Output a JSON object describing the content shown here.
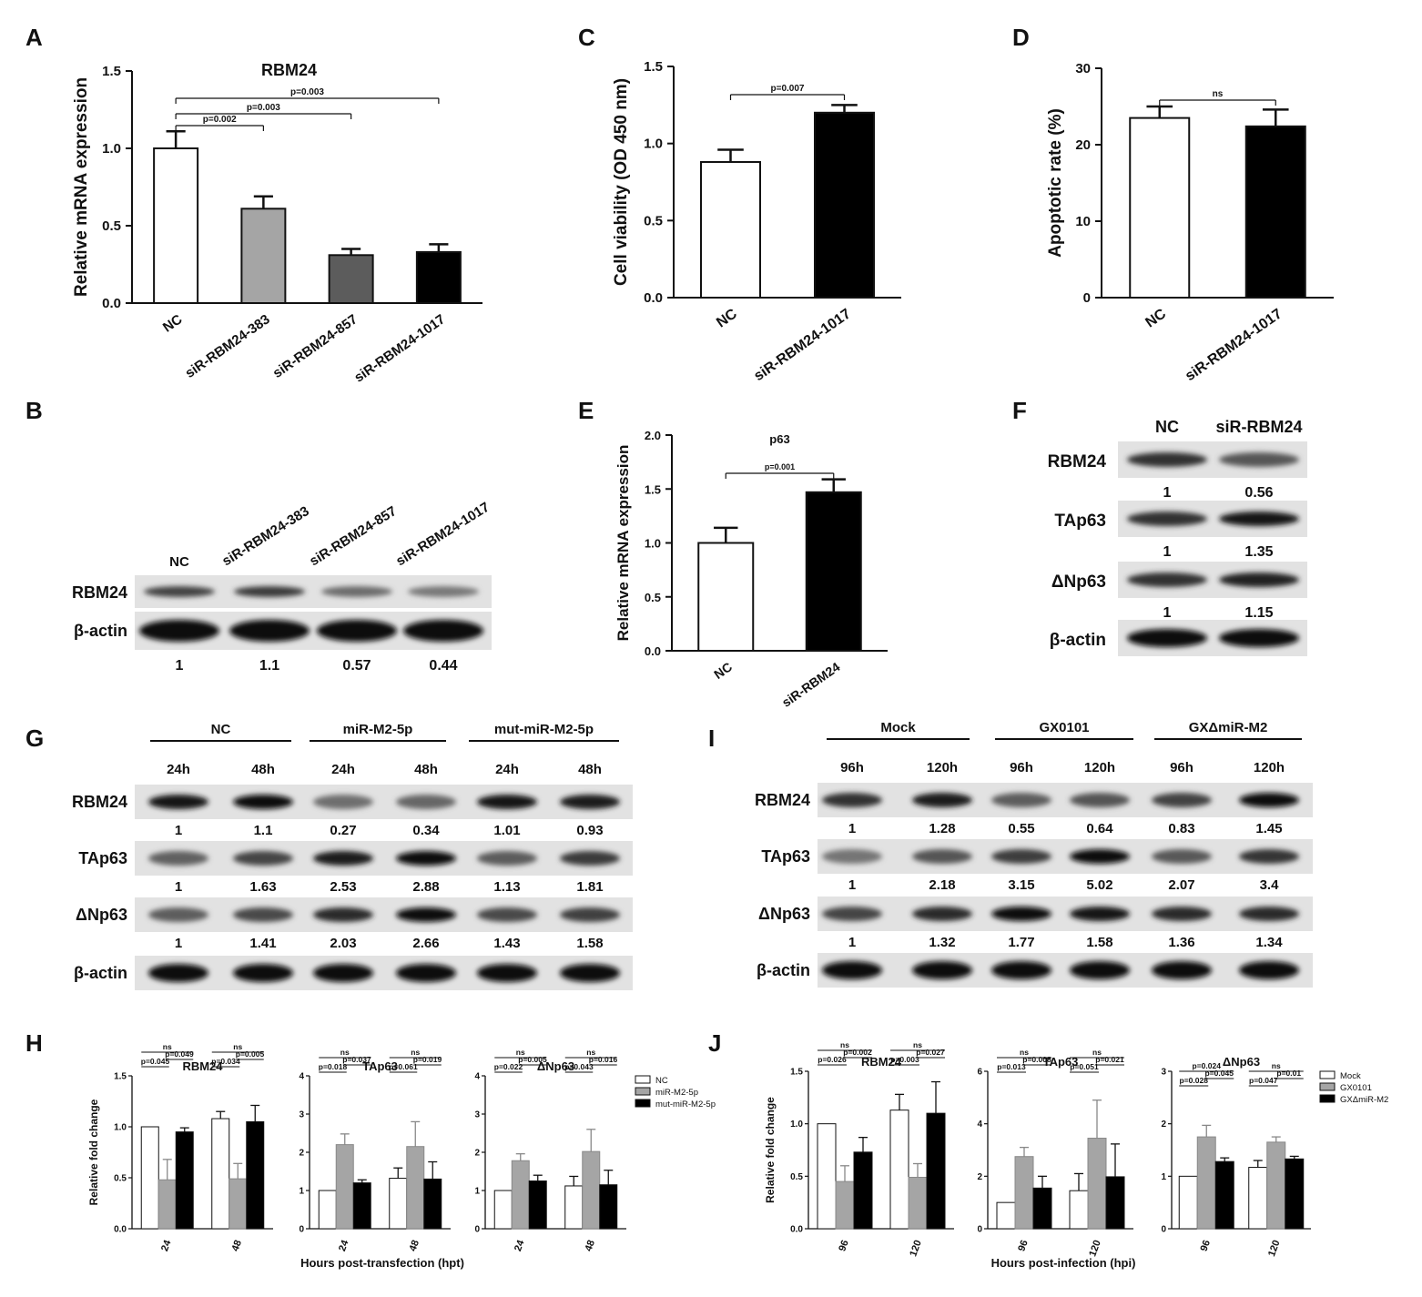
{
  "panel_labels": [
    "A",
    "B",
    "C",
    "D",
    "E",
    "F",
    "G",
    "H",
    "I",
    "J"
  ],
  "chart_data": [
    {
      "id": "A",
      "type": "bar",
      "title": "RBM24",
      "ylabel": "Relative mRNA expression",
      "ylim": [
        0,
        1.5
      ],
      "yticks": [
        "0.0",
        "0.5",
        "1.0",
        "1.5"
      ],
      "categories": [
        "NC",
        "siR-RBM24-383",
        "siR-RBM24-857",
        "siR-RBM24-1017"
      ],
      "values": [
        1.0,
        0.61,
        0.31,
        0.33
      ],
      "errors": [
        0.11,
        0.08,
        0.04,
        0.05
      ],
      "colors": [
        "#ffffff",
        "#a5a5a5",
        "#5c5c5c",
        "#000000"
      ],
      "annotations": [
        {
          "text": "p=0.002",
          "from": 0,
          "to": 1
        },
        {
          "text": "p=0.003",
          "from": 0,
          "to": 2
        },
        {
          "text": "p=0.003",
          "from": 0,
          "to": 3
        }
      ]
    },
    {
      "id": "C",
      "type": "bar",
      "title": "",
      "ylabel": "Cell viability (OD 450 nm)",
      "ylim": [
        0,
        1.5
      ],
      "yticks": [
        "0.0",
        "0.5",
        "1.0",
        "1.5"
      ],
      "categories": [
        "NC",
        "siR-RBM24-1017"
      ],
      "values": [
        0.88,
        1.2
      ],
      "errors": [
        0.08,
        0.05
      ],
      "colors": [
        "#ffffff",
        "#000000"
      ],
      "annotations": [
        {
          "text": "p=0.007",
          "from": 0,
          "to": 1
        }
      ]
    },
    {
      "id": "D",
      "type": "bar",
      "title": "",
      "ylabel": "Apoptotic rate (%)",
      "ylim": [
        0,
        30
      ],
      "yticks": [
        "0",
        "10",
        "20",
        "30"
      ],
      "categories": [
        "NC",
        "siR-RBM24-1017"
      ],
      "values": [
        23.5,
        22.4
      ],
      "errors": [
        1.5,
        2.2
      ],
      "colors": [
        "#ffffff",
        "#000000"
      ],
      "annotations": [
        {
          "text": "ns",
          "from": 0,
          "to": 1
        }
      ]
    },
    {
      "id": "E",
      "type": "bar",
      "title": "p63",
      "ylabel": "Relative mRNA expression",
      "ylim": [
        0,
        2
      ],
      "yticks": [
        "0.0",
        "0.5",
        "1.0",
        "1.5",
        "2.0"
      ],
      "categories": [
        "NC",
        "siR-RBM24"
      ],
      "values": [
        1.0,
        1.47
      ],
      "errors": [
        0.14,
        0.12
      ],
      "colors": [
        "#ffffff",
        "#000000"
      ],
      "annotations": [
        {
          "text": "p=0.001",
          "from": 0,
          "to": 1
        }
      ]
    },
    {
      "id": "H1",
      "type": "bar",
      "title": "RBM24",
      "ylabel": "Relative fold change",
      "ylim": [
        0,
        1.5
      ],
      "yticks": [
        "0.0",
        "0.5",
        "1.0",
        "1.5"
      ],
      "categories": [
        "24",
        "48"
      ],
      "series": [
        {
          "name": "NC",
          "values": [
            1.0,
            1.08
          ],
          "errors": [
            0,
            0.07
          ]
        },
        {
          "name": "miR-M2-5p",
          "values": [
            0.48,
            0.49
          ],
          "errors": [
            0.2,
            0.15
          ]
        },
        {
          "name": "mut-miR-M2-5p",
          "values": [
            0.95,
            1.05
          ],
          "errors": [
            0.04,
            0.16
          ]
        }
      ],
      "annotations": [
        [
          "ns",
          "p=0.045",
          "p=0.049"
        ],
        [
          "ns",
          "p=0.034",
          "p=0.005"
        ]
      ]
    },
    {
      "id": "H2",
      "type": "bar",
      "title": "TAp63",
      "ylim": [
        0,
        4
      ],
      "yticks": [
        "0",
        "1",
        "2",
        "3",
        "4"
      ],
      "categories": [
        "24",
        "48"
      ],
      "series": [
        {
          "name": "NC",
          "values": [
            1.0,
            1.32
          ],
          "errors": [
            0,
            0.27
          ]
        },
        {
          "name": "miR-M2-5p",
          "values": [
            2.2,
            2.15
          ],
          "errors": [
            0.28,
            0.65
          ]
        },
        {
          "name": "mut-miR-M2-5p",
          "values": [
            1.2,
            1.3
          ],
          "errors": [
            0.08,
            0.45
          ]
        }
      ],
      "annotations": [
        [
          "ns",
          "p=0.018",
          "p=0.037"
        ],
        [
          "ns",
          "p=0.061",
          "p=0.019"
        ]
      ]
    },
    {
      "id": "H3",
      "type": "bar",
      "title": "ΔNp63",
      "ylim": [
        0,
        4
      ],
      "yticks": [
        "0",
        "1",
        "2",
        "3",
        "4"
      ],
      "categories": [
        "24",
        "48"
      ],
      "series": [
        {
          "name": "NC",
          "values": [
            1.0,
            1.12
          ],
          "errors": [
            0,
            0.25
          ]
        },
        {
          "name": "miR-M2-5p",
          "values": [
            1.78,
            2.02
          ],
          "errors": [
            0.18,
            0.58
          ]
        },
        {
          "name": "mut-miR-M2-5p",
          "values": [
            1.25,
            1.15
          ],
          "errors": [
            0.15,
            0.38
          ]
        }
      ],
      "annotations": [
        [
          "ns",
          "p=0.022",
          "p=0.005"
        ],
        [
          "ns",
          "p=0.043",
          "p=0.016"
        ]
      ]
    },
    {
      "id": "J1",
      "type": "bar",
      "title": "RBM24",
      "ylabel": "Relative fold change",
      "ylim": [
        0,
        1.5
      ],
      "yticks": [
        "0.0",
        "0.5",
        "1.0",
        "1.5"
      ],
      "categories": [
        "96",
        "120"
      ],
      "series": [
        {
          "name": "Mock",
          "values": [
            1.0,
            1.13
          ],
          "errors": [
            0,
            0.15
          ]
        },
        {
          "name": "GX0101",
          "values": [
            0.45,
            0.49
          ],
          "errors": [
            0.15,
            0.13
          ]
        },
        {
          "name": "GXΔmiR-M2",
          "values": [
            0.73,
            1.1
          ],
          "errors": [
            0.14,
            0.3
          ]
        }
      ],
      "annotations": [
        [
          "ns",
          "p=0.026",
          "p=0.002"
        ],
        [
          "ns",
          "p=0.003",
          "p=0.027"
        ]
      ]
    },
    {
      "id": "J2",
      "type": "bar",
      "title": "TAp63",
      "ylim": [
        0,
        6
      ],
      "yticks": [
        "0",
        "2",
        "4",
        "6"
      ],
      "categories": [
        "96",
        "120"
      ],
      "series": [
        {
          "name": "Mock",
          "values": [
            1.0,
            1.45
          ],
          "errors": [
            0,
            0.65
          ]
        },
        {
          "name": "GX0101",
          "values": [
            2.75,
            3.45
          ],
          "errors": [
            0.35,
            1.45
          ]
        },
        {
          "name": "GXΔmiR-M2",
          "values": [
            1.55,
            1.98
          ],
          "errors": [
            0.45,
            1.25
          ]
        }
      ],
      "annotations": [
        [
          "ns",
          "p=0.013",
          "p=0.008"
        ],
        [
          "ns",
          "p=0.051",
          "p=0.021"
        ]
      ]
    },
    {
      "id": "J3",
      "type": "bar",
      "title": "ΔNp63",
      "ylim": [
        0,
        3
      ],
      "yticks": [
        "0",
        "1",
        "2",
        "3"
      ],
      "categories": [
        "96",
        "120"
      ],
      "series": [
        {
          "name": "Mock",
          "values": [
            1.0,
            1.17
          ],
          "errors": [
            0,
            0.13
          ]
        },
        {
          "name": "GX0101",
          "values": [
            1.75,
            1.65
          ],
          "errors": [
            0.22,
            0.1
          ]
        },
        {
          "name": "GXΔmiR-M2",
          "values": [
            1.28,
            1.33
          ],
          "errors": [
            0.07,
            0.05
          ]
        }
      ],
      "annotations": [
        [
          "p=0.024",
          "p=0.028",
          "p=0.045"
        ],
        [
          "ns",
          "p=0.047",
          "p=0.01"
        ]
      ]
    }
  ],
  "H_xlabel": "Hours post-transfection (hpt)",
  "J_xlabel": "Hours post-infection (hpi)",
  "legend_H": [
    "NC",
    "miR-M2-5p",
    "mut-miR-M2-5p"
  ],
  "legend_J": [
    "Mock",
    "GX0101",
    "GXΔmiR-M2"
  ],
  "blot_B": {
    "lanes": [
      "NC",
      "siR-RBM24-383",
      "siR-RBM24-857",
      "siR-RBM24-1017"
    ],
    "rows": [
      "RBM24",
      "β-actin"
    ],
    "quant": [
      "1",
      "1.1",
      "0.57",
      "0.44"
    ]
  },
  "blot_F": {
    "lanes": [
      "NC",
      "siR-RBM24"
    ],
    "rows": [
      "RBM24",
      "TAp63",
      "ΔNp63",
      "β-actin"
    ],
    "quant": [
      [
        "1",
        "0.56"
      ],
      [
        "1",
        "1.35"
      ],
      [
        "1",
        "1.15"
      ]
    ]
  },
  "blot_G": {
    "groups": [
      "NC",
      "miR-M2-5p",
      "mut-miR-M2-5p"
    ],
    "times": [
      "24h",
      "48h",
      "24h",
      "48h",
      "24h",
      "48h"
    ],
    "rows": [
      "RBM24",
      "TAp63",
      "ΔNp63",
      "β-actin"
    ],
    "quant": [
      [
        "1",
        "1.1",
        "0.27",
        "0.34",
        "1.01",
        "0.93"
      ],
      [
        "1",
        "1.63",
        "2.53",
        "2.88",
        "1.13",
        "1.81"
      ],
      [
        "1",
        "1.41",
        "2.03",
        "2.66",
        "1.43",
        "1.58"
      ]
    ]
  },
  "blot_I": {
    "groups": [
      "Mock",
      "GX0101",
      "GXΔmiR-M2"
    ],
    "times": [
      "96h",
      "120h",
      "96h",
      "120h",
      "96h",
      "120h"
    ],
    "rows": [
      "RBM24",
      "TAp63",
      "ΔNp63",
      "β-actin"
    ],
    "quant": [
      [
        "1",
        "1.28",
        "0.55",
        "0.64",
        "0.83",
        "1.45"
      ],
      [
        "1",
        "2.18",
        "3.15",
        "5.02",
        "2.07",
        "3.4"
      ],
      [
        "1",
        "1.32",
        "1.77",
        "1.58",
        "1.36",
        "1.34"
      ]
    ]
  }
}
